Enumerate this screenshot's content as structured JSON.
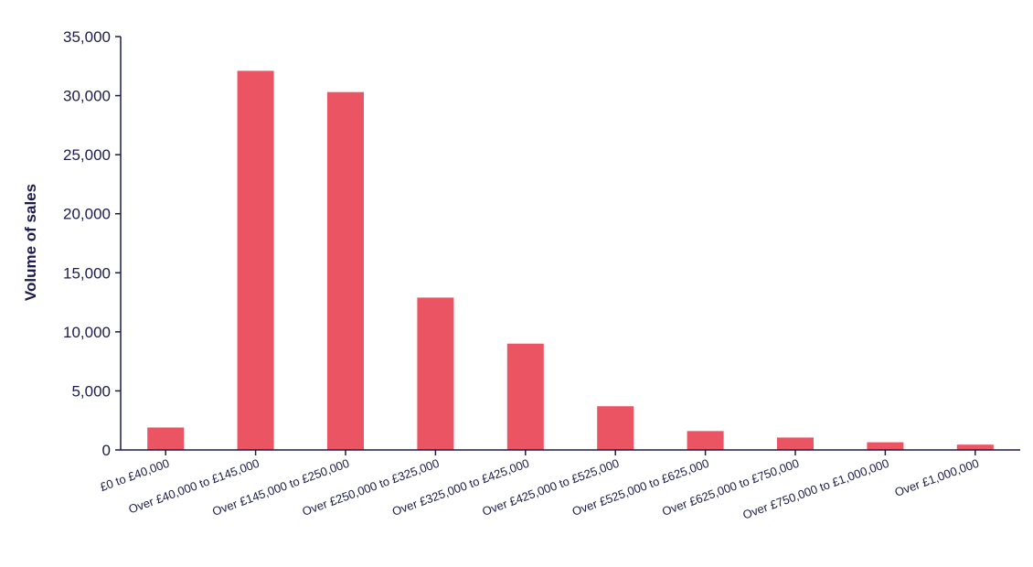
{
  "chart_data": {
    "type": "bar",
    "categories": [
      "£0 to £40,000",
      "Over £40,000 to £145,000",
      "Over £145,000 to £250,000",
      "Over £250,000 to £325,000",
      "Over £325,000 to £425,000",
      "Over £425,000 to £525,000",
      "Over £525,000 to £625,000",
      "Over £625,000 to £750,000",
      "Over £750,000 to £1,000,000",
      "Over £1,000,000"
    ],
    "values": [
      1900,
      32100,
      30300,
      12900,
      9000,
      3700,
      1600,
      1050,
      650,
      450
    ],
    "title": "",
    "xlabel": "",
    "ylabel": "Volume of sales",
    "ylim": [
      0,
      35000
    ],
    "yticks": [
      {
        "value": 0,
        "label": "0"
      },
      {
        "value": 5000,
        "label": "5,000"
      },
      {
        "value": 10000,
        "label": "10,000"
      },
      {
        "value": 15000,
        "label": "15,000"
      },
      {
        "value": 20000,
        "label": "20,000"
      },
      {
        "value": 25000,
        "label": "25,000"
      },
      {
        "value": 30000,
        "label": "30,000"
      },
      {
        "value": 35000,
        "label": "35,000"
      }
    ],
    "grid": false,
    "legend": "none",
    "bar_color": "#eb5462",
    "axis_color": "#1b1b4d"
  }
}
